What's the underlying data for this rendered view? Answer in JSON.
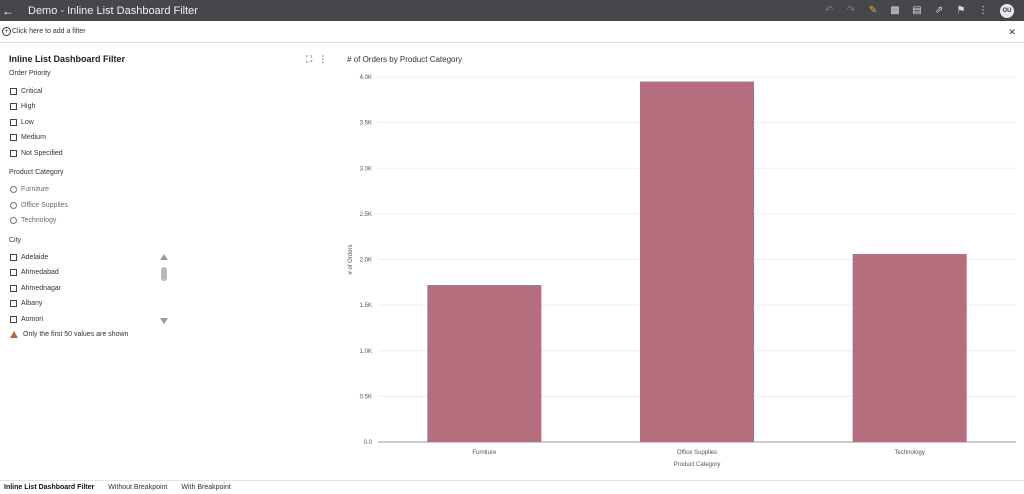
{
  "app": {
    "title": "Demo - Inline List Dashboard Filter",
    "user_initials": "OU"
  },
  "filterbar": {
    "add_filter": "Click here to add a filter"
  },
  "panel": {
    "title": "Inline List Dashboard Filter"
  },
  "filters": {
    "order_priority": {
      "label": "Order Priority",
      "options": [
        "Critical",
        "High",
        "Low",
        "Medium",
        "Not Specified"
      ]
    },
    "product_category": {
      "label": "Product Category",
      "options": [
        "Furniture",
        "Office Supplies",
        "Technology"
      ]
    },
    "city": {
      "label": "City",
      "options": [
        "Adelaide",
        "Ahmedabad",
        "Ahmednagar",
        "Albany",
        "Aomori"
      ]
    },
    "warning": "Only the first 50 values are shown"
  },
  "chart_data": {
    "type": "bar",
    "title": "# of Orders by Product Category",
    "xlabel": "Product Category",
    "ylabel": "# of Orders",
    "categories": [
      "Furniture",
      "Office Supplies",
      "Technology"
    ],
    "values": [
      1720,
      3950,
      2060
    ],
    "ylim": [
      0,
      4000
    ],
    "yticks": [
      "0.0",
      "0.5K",
      "1.0K",
      "1.5K",
      "2.0K",
      "2.5K",
      "3.0K",
      "3.5K",
      "4.0K"
    ],
    "bar_color": "#b46e7e",
    "grid": true
  },
  "tabs": [
    "Inline List Dashboard Filter",
    "Without Breakpoint",
    "With Breakpoint"
  ],
  "colors": {
    "topbar": "#45474b",
    "accent": "#e0b33a",
    "warning": "#c0623b"
  }
}
